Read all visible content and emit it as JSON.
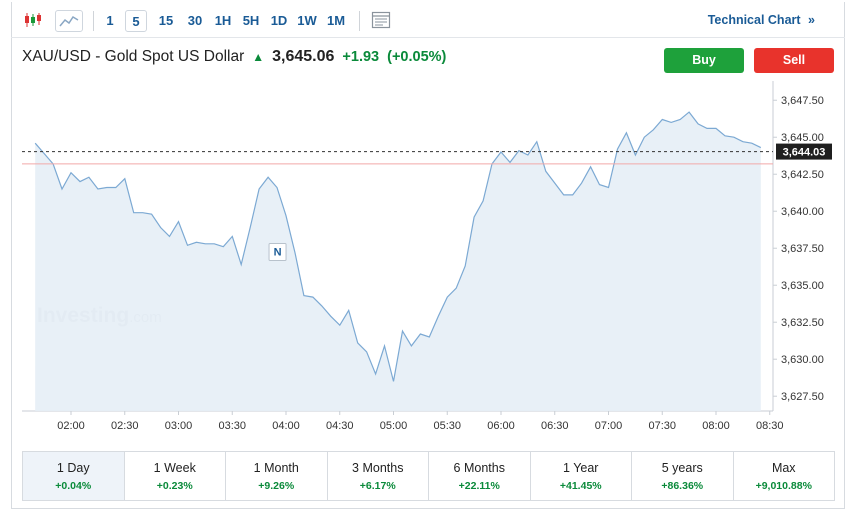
{
  "toolbar": {
    "intervals": [
      "1",
      "5",
      "15",
      "30",
      "1H",
      "5H",
      "1D",
      "1W",
      "1M"
    ],
    "active_interval": "5",
    "technical_link": "Technical Chart"
  },
  "header": {
    "title": "XAU/USD - Gold Spot US Dollar",
    "price": "3,645.06",
    "change": "+1.93",
    "change_pct": "(+0.05%)",
    "buy_label": "Buy",
    "sell_label": "Sell"
  },
  "colors": {
    "up": "#0a8a3a",
    "line": "#7ca9d3",
    "area": "#e6eef6",
    "buy": "#1ea13b",
    "sell": "#e8332c",
    "accent": "#1a5b96"
  },
  "chart_data": {
    "type": "area",
    "watermark": "Investing.com",
    "x_tick_labels": [
      "02:00",
      "02:30",
      "03:00",
      "03:30",
      "04:00",
      "04:30",
      "05:00",
      "05:30",
      "06:00",
      "06:30",
      "07:00",
      "07:30",
      "08:00",
      "08:30"
    ],
    "y_tick_labels": [
      "3,647.50",
      "3,645.00",
      "3,642.50",
      "3,640.00",
      "3,637.50",
      "3,635.00",
      "3,632.50",
      "3,630.00",
      "3,627.50"
    ],
    "ylim": [
      3626.5,
      3648.8
    ],
    "current_price": 3644.03,
    "current_price_label": "3,644.03",
    "reference_line": 3643.2,
    "event_marker": {
      "label": "N",
      "x": "03:55"
    },
    "x": [
      "01:40",
      "01:45",
      "01:50",
      "01:55",
      "02:00",
      "02:05",
      "02:10",
      "02:15",
      "02:20",
      "02:25",
      "02:30",
      "02:35",
      "02:40",
      "02:45",
      "02:50",
      "02:55",
      "03:00",
      "03:05",
      "03:10",
      "03:15",
      "03:20",
      "03:25",
      "03:30",
      "03:35",
      "03:40",
      "03:45",
      "03:50",
      "03:55",
      "04:00",
      "04:05",
      "04:10",
      "04:15",
      "04:20",
      "04:25",
      "04:30",
      "04:35",
      "04:40",
      "04:45",
      "04:50",
      "04:55",
      "05:00",
      "05:05",
      "05:10",
      "05:15",
      "05:20",
      "05:25",
      "05:30",
      "05:35",
      "05:40",
      "05:45",
      "05:50",
      "05:55",
      "06:00",
      "06:05",
      "06:10",
      "06:15",
      "06:20",
      "06:25",
      "06:30",
      "06:35",
      "06:40",
      "06:45",
      "06:50",
      "06:55",
      "07:00",
      "07:05",
      "07:10",
      "07:15",
      "07:20",
      "07:25",
      "07:30",
      "07:35",
      "07:40",
      "07:45",
      "07:50",
      "07:55",
      "08:00",
      "08:05",
      "08:10",
      "08:15",
      "08:20",
      "08:25"
    ],
    "values": [
      3644.6,
      3643.9,
      3643.2,
      3641.5,
      3642.6,
      3642.0,
      3642.3,
      3641.5,
      3641.6,
      3641.6,
      3642.2,
      3639.9,
      3639.9,
      3639.8,
      3638.9,
      3638.3,
      3639.3,
      3637.7,
      3637.9,
      3637.8,
      3637.8,
      3637.6,
      3638.3,
      3636.4,
      3638.9,
      3641.5,
      3642.3,
      3641.6,
      3639.7,
      3637.2,
      3634.3,
      3634.2,
      3633.6,
      3632.9,
      3632.3,
      3633.3,
      3631.1,
      3630.5,
      3629.0,
      3630.9,
      3628.5,
      3631.9,
      3630.9,
      3631.7,
      3631.5,
      3632.9,
      3634.2,
      3634.8,
      3636.3,
      3639.6,
      3640.7,
      3643.2,
      3644.0,
      3643.3,
      3644.1,
      3643.8,
      3644.7,
      3642.7,
      3641.9,
      3641.1,
      3641.1,
      3641.9,
      3643.0,
      3641.8,
      3641.6,
      3644.2,
      3645.3,
      3643.8,
      3645.0,
      3645.5,
      3646.2,
      3646.0,
      3646.2,
      3646.7,
      3645.9,
      3645.6,
      3645.6,
      3645.1,
      3645.0,
      3644.7,
      3644.6,
      3644.3
    ]
  },
  "periods": [
    {
      "label": "1 Day",
      "change": "+0.04%"
    },
    {
      "label": "1 Week",
      "change": "+0.23%"
    },
    {
      "label": "1 Month",
      "change": "+9.26%"
    },
    {
      "label": "3 Months",
      "change": "+6.17%"
    },
    {
      "label": "6 Months",
      "change": "+22.11%"
    },
    {
      "label": "1 Year",
      "change": "+41.45%"
    },
    {
      "label": "5 years",
      "change": "+86.36%"
    },
    {
      "label": "Max",
      "change": "+9,010.88%"
    }
  ],
  "active_period": "1 Day"
}
